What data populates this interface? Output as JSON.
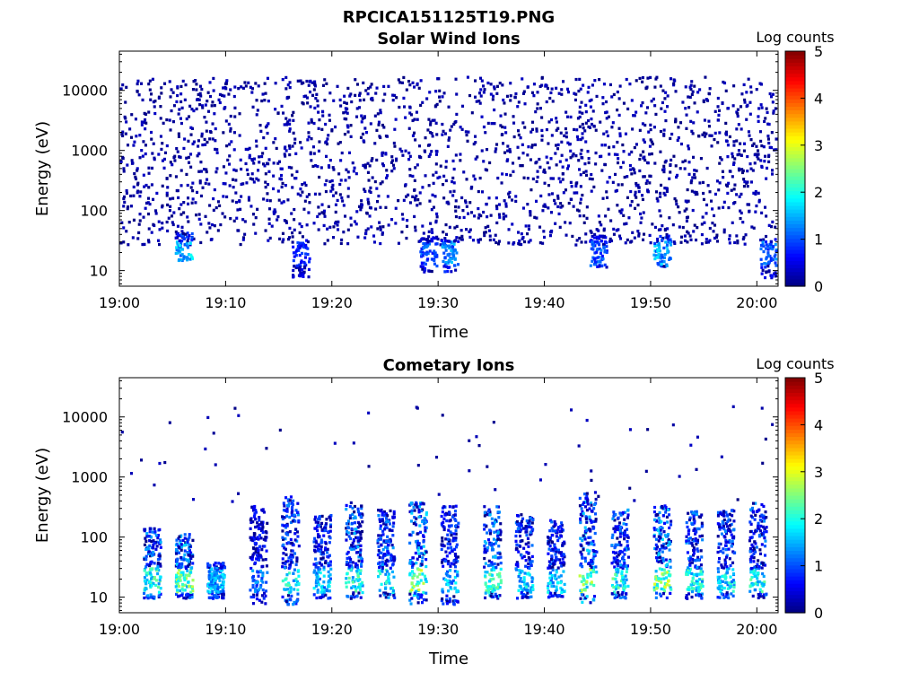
{
  "figure_title": "RPCICA151125T19.PNG",
  "colorbar_ticks": [
    "0",
    "1",
    "2",
    "3",
    "4",
    "5"
  ],
  "colormap": [
    "#00007f",
    "#0000ff",
    "#007fff",
    "#00ffff",
    "#7fff7f",
    "#ffff00",
    "#ff7f00",
    "#ff0000",
    "#7f0000"
  ],
  "chart_data": [
    {
      "type": "heatmap",
      "title": "Solar Wind Ions",
      "xlabel": "Time",
      "ylabel": "Energy (eV)",
      "colorbar_label": "Log counts",
      "xticks": [
        "19:00",
        "19:10",
        "19:20",
        "19:30",
        "19:40",
        "19:50",
        "20:00"
      ],
      "yticks": [
        "10",
        "100",
        "1000",
        "10000"
      ],
      "x_range": [
        "19:00",
        "20:02"
      ],
      "y_range_ev": [
        5.5,
        45000
      ],
      "y_scale": "log",
      "color_range": [
        0,
        5
      ],
      "description": "Sparse single counts (log counts ~0) scattered across 30 eV - 20 keV throughout the hour; short bursts of log counts ~1-2 at 10-40 eV near 19:06, 19:31, 19:45, 19:51 and 20:01.",
      "bursts": [
        {
          "time": "19:06",
          "energy_ev": [
            15,
            45
          ],
          "peak_log_counts": 2.0
        },
        {
          "time": "19:17",
          "energy_ev": [
            8,
            35
          ],
          "peak_log_counts": 1.0
        },
        {
          "time": "19:29",
          "energy_ev": [
            10,
            40
          ],
          "peak_log_counts": 1.3
        },
        {
          "time": "19:31",
          "energy_ev": [
            10,
            35
          ],
          "peak_log_counts": 1.6
        },
        {
          "time": "19:45",
          "energy_ev": [
            12,
            40
          ],
          "peak_log_counts": 1.3
        },
        {
          "time": "19:51",
          "energy_ev": [
            12,
            40
          ],
          "peak_log_counts": 1.8
        },
        {
          "time": "20:01",
          "energy_ev": [
            8,
            35
          ],
          "peak_log_counts": 1.4
        }
      ]
    },
    {
      "type": "heatmap",
      "title": "Cometary Ions",
      "xlabel": "Time",
      "ylabel": "Energy (eV)",
      "colorbar_label": "Log counts",
      "xticks": [
        "19:00",
        "19:10",
        "19:20",
        "19:30",
        "19:40",
        "19:50",
        "20:00"
      ],
      "yticks": [
        "10",
        "100",
        "1000",
        "10000"
      ],
      "x_range": [
        "19:00",
        "20:02"
      ],
      "y_range_ev": [
        5.5,
        45000
      ],
      "y_scale": "log",
      "color_range": [
        0,
        5
      ],
      "description": "Periodic ion bursts roughly every 3 minutes; intense cores (log counts ~2-3) at 15-35 eV with fainter counts extending up to ~300-600 eV; isolated single counts at higher energies.",
      "bursts": [
        {
          "time": "19:03",
          "energy_ev": [
            10,
            150
          ],
          "peak_log_counts": 2.6
        },
        {
          "time": "19:06",
          "energy_ev": [
            10,
            120
          ],
          "peak_log_counts": 2.9
        },
        {
          "time": "19:09",
          "energy_ev": [
            10,
            40
          ],
          "peak_log_counts": 1.9
        },
        {
          "time": "19:13",
          "energy_ev": [
            8,
            350
          ],
          "peak_log_counts": 1.5
        },
        {
          "time": "19:16",
          "energy_ev": [
            8,
            500
          ],
          "peak_log_counts": 2.3
        },
        {
          "time": "19:19",
          "energy_ev": [
            10,
            250
          ],
          "peak_log_counts": 2.0
        },
        {
          "time": "19:22",
          "energy_ev": [
            10,
            400
          ],
          "peak_log_counts": 2.6
        },
        {
          "time": "19:25",
          "energy_ev": [
            10,
            300
          ],
          "peak_log_counts": 2.4
        },
        {
          "time": "19:28",
          "energy_ev": [
            8,
            400
          ],
          "peak_log_counts": 3.0
        },
        {
          "time": "19:31",
          "energy_ev": [
            8,
            350
          ],
          "peak_log_counts": 1.9
        },
        {
          "time": "19:35",
          "energy_ev": [
            10,
            350
          ],
          "peak_log_counts": 2.7
        },
        {
          "time": "19:38",
          "energy_ev": [
            10,
            250
          ],
          "peak_log_counts": 2.1
        },
        {
          "time": "19:41",
          "energy_ev": [
            10,
            200
          ],
          "peak_log_counts": 2.0
        },
        {
          "time": "19:44",
          "energy_ev": [
            8,
            600
          ],
          "peak_log_counts": 2.9
        },
        {
          "time": "19:47",
          "energy_ev": [
            10,
            300
          ],
          "peak_log_counts": 2.5
        },
        {
          "time": "19:51",
          "energy_ev": [
            10,
            350
          ],
          "peak_log_counts": 3.0
        },
        {
          "time": "19:54",
          "energy_ev": [
            10,
            300
          ],
          "peak_log_counts": 2.4
        },
        {
          "time": "19:57",
          "energy_ev": [
            10,
            300
          ],
          "peak_log_counts": 2.2
        },
        {
          "time": "20:00",
          "energy_ev": [
            10,
            400
          ],
          "peak_log_counts": 2.4
        }
      ]
    }
  ]
}
